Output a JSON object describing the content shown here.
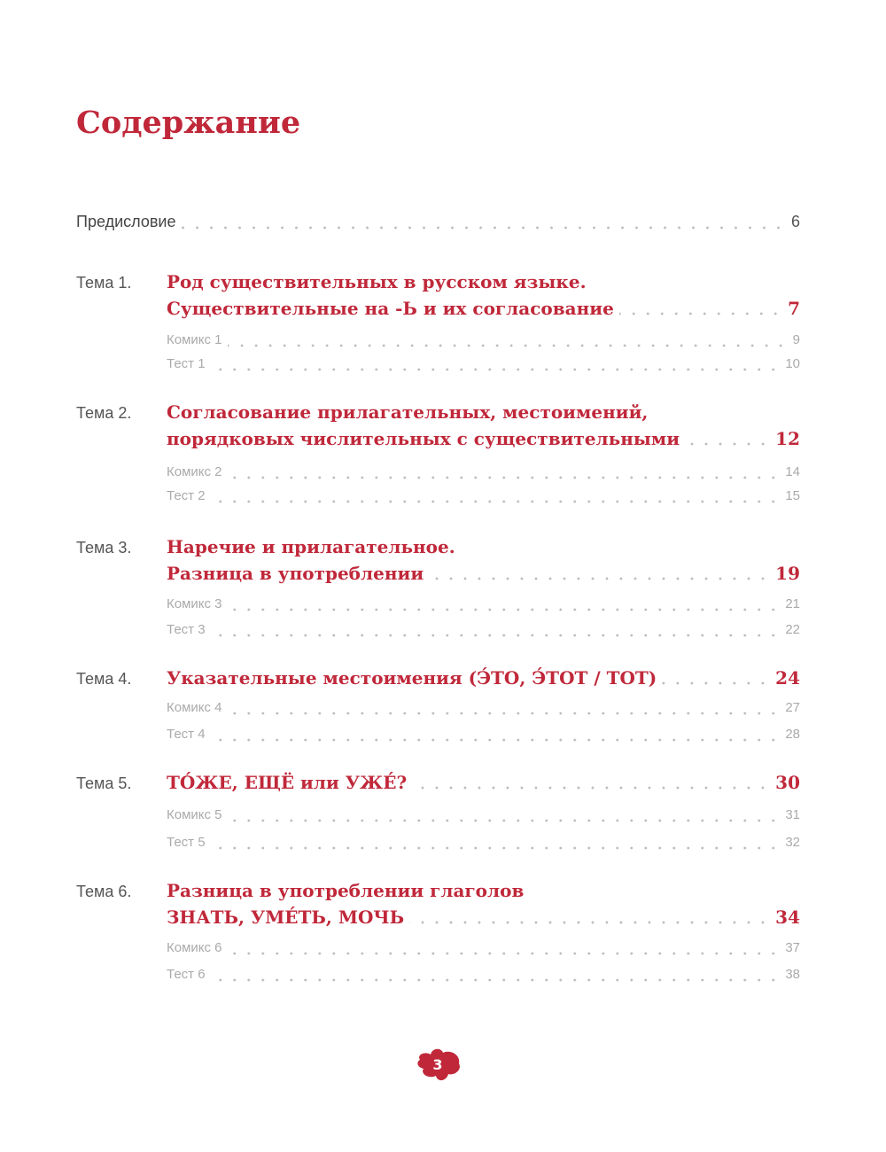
{
  "title": "Содержание",
  "preface": {
    "label": "Предисловие",
    "page": "6"
  },
  "topics": [
    {
      "label": "Тема 1.",
      "lines": [
        "Род существительных в русском языке.",
        "Существительные на -Ь и их согласование"
      ],
      "page": "7",
      "subs": [
        {
          "label": "Комикс 1",
          "page": "9"
        },
        {
          "label": "Тест 1",
          "page": "10"
        }
      ]
    },
    {
      "label": "Тема 2.",
      "lines": [
        "Согласование прилагательных, местоимений,",
        "порядковых числительных с существительными"
      ],
      "page": "12",
      "subs": [
        {
          "label": "Комикс 2",
          "page": "14"
        },
        {
          "label": "Тест 2",
          "page": "15"
        }
      ]
    },
    {
      "label": "Тема 3.",
      "lines": [
        "Наречие и прилагательное.",
        "Разница в употреблении"
      ],
      "page": "19",
      "subs": [
        {
          "label": "Комикс 3",
          "page": "21"
        },
        {
          "label": "Тест 3",
          "page": "22"
        }
      ]
    },
    {
      "label": "Тема 4.",
      "lines": [
        "Указательные местоимения (Э́ТО, Э́ТОТ / ТОТ)"
      ],
      "page": "24",
      "subs": [
        {
          "label": "Комикс 4",
          "page": "27"
        },
        {
          "label": "Тест 4",
          "page": "28"
        }
      ]
    },
    {
      "label": "Тема 5.",
      "lines": [
        "ТО́ЖЕ, ЕЩЁ или УЖЕ́?"
      ],
      "page": "30",
      "subs": [
        {
          "label": "Комикс 5",
          "page": "31"
        },
        {
          "label": "Тест 5",
          "page": "32"
        }
      ]
    },
    {
      "label": "Тема 6.",
      "lines": [
        "Разница в употреблении глаголов",
        "ЗНАТЬ, УМЕ́ТЬ, МОЧЬ"
      ],
      "page": "34",
      "subs": [
        {
          "label": "Комикс 6",
          "page": "37"
        },
        {
          "label": "Тест 6",
          "page": "38"
        }
      ]
    }
  ],
  "page_number": "3",
  "colors": {
    "accent": "#c0283a",
    "muted": "#aaaaaa"
  }
}
